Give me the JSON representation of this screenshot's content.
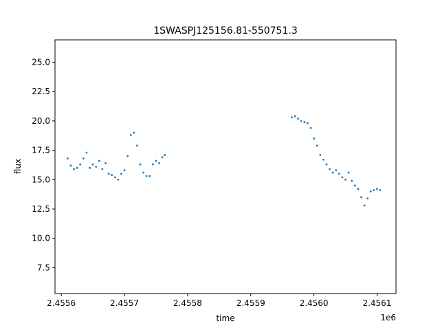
{
  "chart_data": {
    "type": "scatter",
    "title": "1SWASPJ125156.81-550751.3",
    "xlabel": "time",
    "ylabel": "flux",
    "x_offset_label": "1e6",
    "xlim": [
      2.45559,
      2.45613
    ],
    "ylim": [
      5.3,
      26.9
    ],
    "x_ticks": [
      {
        "value": 2.4556,
        "label": "2.4556"
      },
      {
        "value": 2.4557,
        "label": "2.4557"
      },
      {
        "value": 2.4558,
        "label": "2.4558"
      },
      {
        "value": 2.4559,
        "label": "2.4559"
      },
      {
        "value": 2.456,
        "label": "2.4560"
      },
      {
        "value": 2.4561,
        "label": "2.4561"
      }
    ],
    "y_ticks": [
      {
        "value": 7.5,
        "label": "7.5"
      },
      {
        "value": 10.0,
        "label": "10.0"
      },
      {
        "value": 12.5,
        "label": "12.5"
      },
      {
        "value": 15.0,
        "label": "15.0"
      },
      {
        "value": 17.5,
        "label": "17.5"
      },
      {
        "value": 20.0,
        "label": "20.0"
      },
      {
        "value": 22.5,
        "label": "22.5"
      },
      {
        "value": 25.0,
        "label": "25.0"
      }
    ],
    "grid": false,
    "marker_color": "#1f77b4",
    "series": [
      {
        "x": [
          2.45561,
          2.455615,
          2.45562,
          2.455625,
          2.45563,
          2.455635,
          2.45564,
          2.455645,
          2.45565,
          2.455655,
          2.45566,
          2.455665,
          2.45567,
          2.455675,
          2.45568,
          2.455685,
          2.45569,
          2.455695,
          2.4557,
          2.455705,
          2.45571,
          2.455715,
          2.45572,
          2.455725,
          2.45573,
          2.455735,
          2.45574,
          2.455745,
          2.45575,
          2.455755,
          2.45576,
          2.455764
        ],
        "y": [
          16.8,
          16.2,
          15.9,
          16.0,
          16.3,
          16.8,
          17.3,
          16.0,
          16.3,
          16.1,
          16.6,
          15.9,
          16.4,
          15.5,
          15.4,
          15.2,
          15.0,
          15.5,
          15.8,
          17.0,
          18.8,
          19.0,
          17.9,
          16.3,
          15.6,
          15.3,
          15.3,
          16.3,
          16.6,
          16.4,
          16.9,
          17.1
        ]
      },
      {
        "x": [
          2.455965,
          2.45597,
          2.455975,
          2.45598,
          2.455985,
          2.45599,
          2.455995,
          2.456,
          2.456005,
          2.45601,
          2.456015,
          2.45602,
          2.456025,
          2.45603,
          2.456035,
          2.45604,
          2.456045,
          2.45605,
          2.456055,
          2.45606,
          2.456065,
          2.45607,
          2.456075,
          2.45608,
          2.456085,
          2.45609,
          2.456095,
          2.4561,
          2.456105
        ],
        "y": [
          20.3,
          20.4,
          20.2,
          20.0,
          19.9,
          19.8,
          19.4,
          18.5,
          17.9,
          17.1,
          16.7,
          16.3,
          15.9,
          15.6,
          15.8,
          15.5,
          15.2,
          15.0,
          15.6,
          14.9,
          14.5,
          14.2,
          13.5,
          12.8,
          13.4,
          14.0,
          14.1,
          14.2,
          14.1
        ]
      }
    ]
  }
}
